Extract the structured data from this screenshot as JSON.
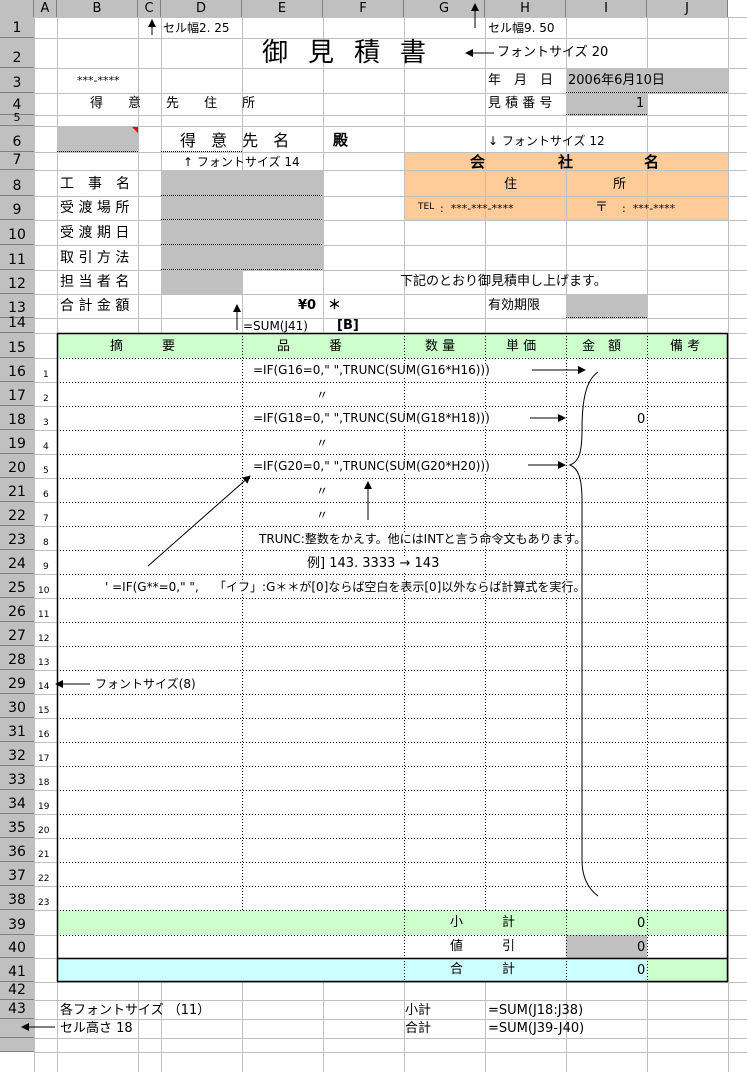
{
  "column_headers": [
    "A",
    "B",
    "C",
    "D",
    "E",
    "F",
    "G",
    "H",
    "I",
    "J"
  ],
  "row_numbers": [
    "1",
    "2",
    "3",
    "4",
    "5",
    "6",
    "7",
    "8",
    "9",
    "10",
    "11",
    "12",
    "13",
    "14",
    "15",
    "16",
    "17",
    "18",
    "19",
    "20",
    "21",
    "22",
    "23",
    "24",
    "25",
    "26",
    "27",
    "28",
    "29",
    "30",
    "31",
    "32",
    "33",
    "34",
    "35",
    "36",
    "37",
    "38",
    "39",
    "40",
    "41",
    "42",
    "43"
  ],
  "item_numbers": [
    "1",
    "2",
    "3",
    "4",
    "5",
    "6",
    "7",
    "8",
    "9",
    "10",
    "11",
    "12",
    "13",
    "14",
    "15",
    "16",
    "17",
    "18",
    "19",
    "20",
    "21",
    "22",
    "23"
  ],
  "notes": {
    "cell_width_c": "セル幅2. 25",
    "cell_width_h": "セル幅9. 50",
    "font_size_20": "フォントサイズ 20",
    "font_size_12": "↓ フォントサイズ 12",
    "font_size_14": "↑ フォントサイズ 14",
    "font_size_8": "フォントサイズ(8)",
    "font_size_11": "各フォントサイズ （11）",
    "cell_height": "セル高さ 18",
    "trunc_note": "TRUNC:整数をかえす。他にはINTと言う命令文もあります。",
    "example": "例] 143. 3333 → 143",
    "if_note": "' =IF(G**=0,\" \",    「イフ」:G＊＊が[0]ならば空白を表示[0]以外ならば計算式を実行。",
    "sum_j41": "=SUM(J41)",
    "b_marker": "[B]",
    "subtotal_label": "小計",
    "subtotal_formula": "=SUM(J18:J38)",
    "total_label": "合計",
    "total_formula": "=SUM(J39-J40)"
  },
  "header": {
    "title": "御見積書",
    "postal": "***-****",
    "client_address": "得　意　先　住　所",
    "client_name": "得 意 先 名",
    "honorific": "殿",
    "date_label": "年　月　日",
    "date_value": "2006年6月10日",
    "estimate_no_label": "見 積 番 号",
    "estimate_no_value": "1"
  },
  "company": {
    "name": [
      "会",
      "社",
      "名"
    ],
    "address": [
      "住",
      "所"
    ],
    "tel_label": "TEL",
    "tel_value": ":  ***-***-****",
    "zip_label": "〒",
    "zip_value": ":  ***-****",
    "bg_color": "#ffcc99"
  },
  "fields": [
    {
      "label": "工　事　名"
    },
    {
      "label": "受 渡 場 所"
    },
    {
      "label": "受 渡 期 日"
    },
    {
      "label": "取 引 方 法"
    },
    {
      "label": "担 当 者 名"
    },
    {
      "label": "合 計 金 額"
    }
  ],
  "greeting": "下記のとおり御見積申し上げます。",
  "total_amount": "¥0",
  "asterisk": "＊",
  "validity_label": "有効期限",
  "table": {
    "columns": [
      "摘　　　要",
      "品　　　番",
      "数 量",
      "単 価",
      "金　額",
      "備 考"
    ],
    "header_color": "#ccffcc",
    "formula_row16": "=IF(G16=0,\" \",TRUNC(SUM(G16*H16)))",
    "formula_row18": "=IF(G18=0,\" \",TRUNC(SUM(G18*H18)))",
    "formula_row20": "=IF(G20=0,\" \",TRUNC(SUM(G20*H20)))",
    "ditto": "〃",
    "amount_row18": "0",
    "subtotal": {
      "label": "小　　　計",
      "value": "0",
      "color": "#ccffcc"
    },
    "discount": {
      "label": "値　　　引",
      "value": "0"
    },
    "total": {
      "label": "合　　　計",
      "value": "0",
      "color": "#ccffff"
    }
  }
}
